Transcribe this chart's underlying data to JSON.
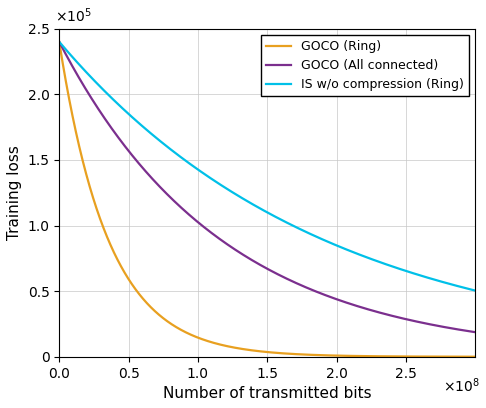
{
  "title": "",
  "xlabel": "Number of transmitted bits",
  "ylabel": "Training loss",
  "xlim": [
    0,
    300000000.0
  ],
  "ylim": [
    0,
    250000.0
  ],
  "xticks": [
    0,
    50000000.0,
    100000000.0,
    150000000.0,
    200000000.0,
    250000000.0
  ],
  "yticks": [
    0,
    50000.0,
    100000.0,
    150000.0,
    200000.0,
    250000.0
  ],
  "xtick_labels": [
    "0",
    "0.5",
    "1",
    "1.5",
    "2",
    "2.5"
  ],
  "ytick_labels": [
    "0",
    "0.5",
    "1",
    "1.5",
    "2",
    "2.5"
  ],
  "legend": [
    {
      "label": "GOCO (Ring)",
      "color": "#E8A020"
    },
    {
      "label": "GOCO (All connected)",
      "color": "#7B2F8E"
    },
    {
      "label": "IS w/o compression (Ring)",
      "color": "#00C0E8"
    }
  ],
  "curves": {
    "goco_ring": {
      "y0": 240000,
      "decay": 2.8e-08
    },
    "goco_all": {
      "y0": 240000,
      "decay": 8.5e-09
    },
    "is_ring": {
      "y0": 240000,
      "decay": 5.2e-09
    }
  },
  "linewidth": 1.6,
  "background_color": "#ffffff",
  "grid_color": "#C8C8C8",
  "tick_fontsize": 10,
  "label_fontsize": 11,
  "legend_fontsize": 9
}
